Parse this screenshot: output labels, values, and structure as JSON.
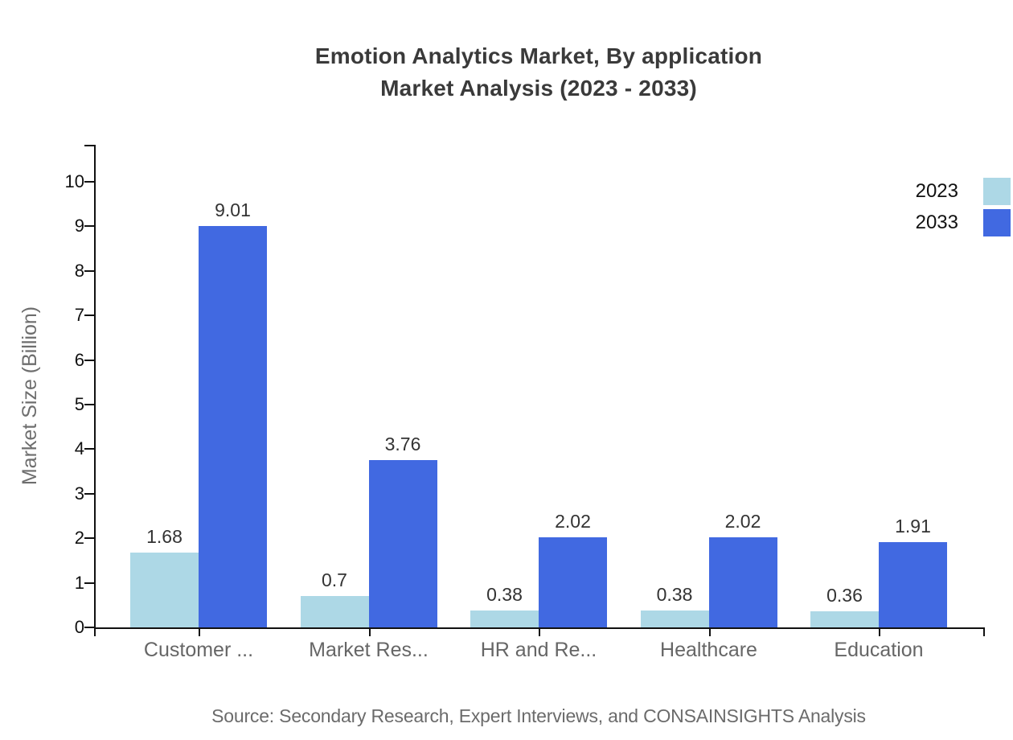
{
  "title": {
    "line1": "Emotion Analytics Market, By application",
    "line2": "Market Analysis (2023 - 2033)"
  },
  "chart_data": {
    "type": "bar",
    "title": "Emotion Analytics Market, By application Market Analysis (2023 - 2033)",
    "categories": [
      "Customer ...",
      "Market Res...",
      "HR and Re...",
      "Healthcare",
      "Education"
    ],
    "series": [
      {
        "name": "2023",
        "color": "#ADD8E6",
        "values": [
          1.68,
          0.7,
          0.38,
          0.38,
          0.36
        ],
        "value_labels": [
          "1.68",
          "0.7",
          "0.38",
          "0.38",
          "0.36"
        ]
      },
      {
        "name": "2033",
        "color": "#4169E1",
        "values": [
          9.01,
          3.76,
          2.02,
          2.02,
          1.91
        ],
        "value_labels": [
          "9.01",
          "3.76",
          "2.02",
          "2.02",
          "1.91"
        ]
      }
    ],
    "xlabel": "",
    "ylabel": "Market Size (Billion)",
    "ylim": [
      0,
      10
    ],
    "yticks": [
      0,
      1,
      2,
      3,
      4,
      5,
      6,
      7,
      8,
      9,
      10
    ],
    "grid": false,
    "legend_position": "top-right"
  },
  "source": {
    "text": "Source: Secondary Research, Expert Interviews, and CONSAINSIGHTS Analysis"
  }
}
